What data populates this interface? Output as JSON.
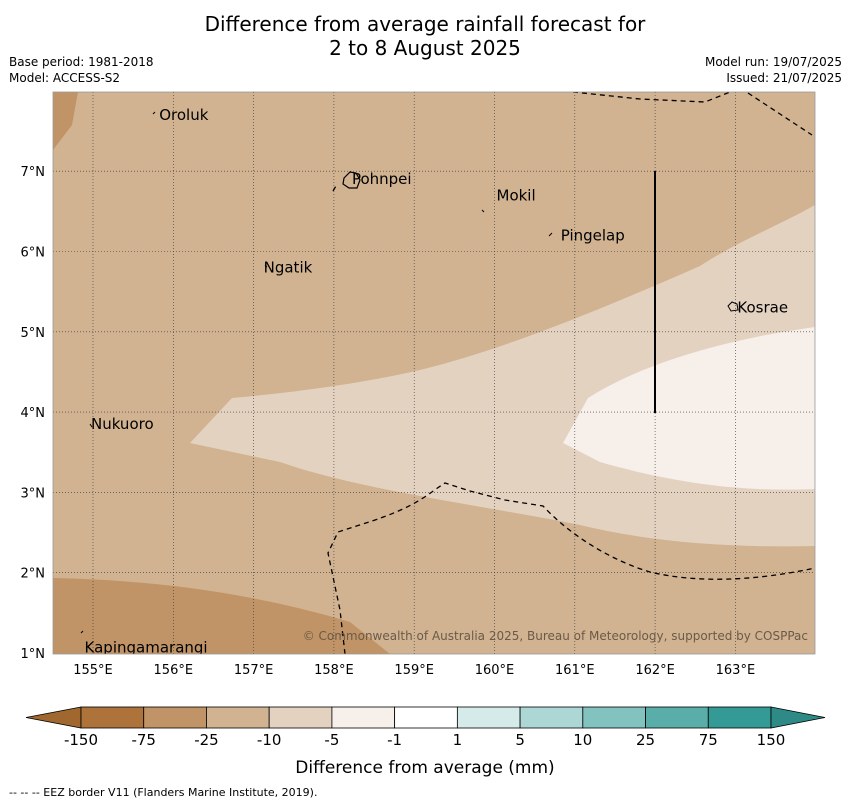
{
  "title_line1": "Difference from average rainfall forecast for",
  "title_line2": "2 to 8 August 2025",
  "base_period": "Base period: 1981-2018",
  "model": "Model: ACCESS-S2",
  "model_run": "Model run: 19/07/2025",
  "issued": "Issued: 21/07/2025",
  "copyright": "© Commonwealth of Australia 2025, Bureau of Meteorology, supported by COSPPac",
  "footnote": "--  --  -- EEZ border V11 (Flanders Marine Institute, 2019).",
  "places": [
    {
      "name": "Oroluk",
      "lon": 155.8,
      "lat": 7.7
    },
    {
      "name": "Pohnpei",
      "lon": 158.2,
      "lat": 6.9
    },
    {
      "name": "Mokil",
      "lon": 160.0,
      "lat": 6.7
    },
    {
      "name": "Pingelap",
      "lon": 160.8,
      "lat": 6.2
    },
    {
      "name": "Ngatik",
      "lon": 157.1,
      "lat": 5.8
    },
    {
      "name": "Kosrae",
      "lon": 163.0,
      "lat": 5.3
    },
    {
      "name": "Nukuoro",
      "lon": 154.95,
      "lat": 3.85
    },
    {
      "name": "Kapingamarangi",
      "lon": 154.87,
      "lat": 1.07
    }
  ],
  "axes": {
    "x_ticks": [
      "155°E",
      "156°E",
      "157°E",
      "158°E",
      "159°E",
      "160°E",
      "161°E",
      "162°E",
      "163°E"
    ],
    "y_ticks": [
      "7°N",
      "6°N",
      "5°N",
      "4°N",
      "3°N",
      "2°N",
      "1°N"
    ]
  },
  "colorbar": {
    "ticks": [
      "-150",
      "-75",
      "-25",
      "-10",
      "-5",
      "-1",
      "1",
      "5",
      "10",
      "25",
      "75",
      "150"
    ],
    "colors": [
      "#ad733a",
      "#c09466",
      "#d1b391",
      "#e4d2c1",
      "#f6efea",
      "#ffffff",
      "#d5ebe9",
      "#acd7d5",
      "#82c2bf",
      "#5aaeaa",
      "#349a96"
    ],
    "under_color": "#a0682e",
    "over_color": "#2e8a87",
    "label": "Difference from average (mm)"
  },
  "colors": {
    "frame_background": "#d1b391",
    "darker_brown": "#c09466",
    "light_tan": "#e4d2c1",
    "near_white": "#f6efea"
  }
}
